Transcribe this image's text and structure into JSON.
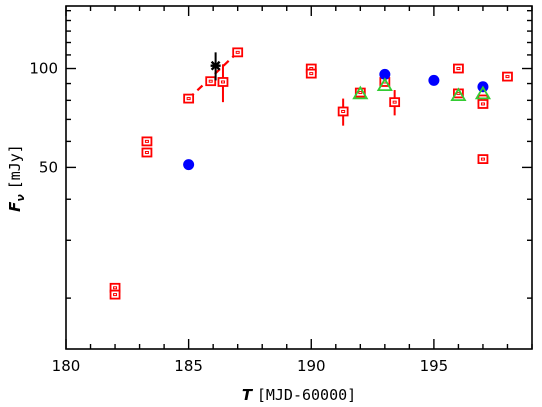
{
  "chart_data": {
    "type": "scatter",
    "title": "",
    "xlabel_symbol": "T",
    "xlabel_units": "[MJD-60000]",
    "ylabel_symbol": "F",
    "ylabel_subscript": "ν",
    "ylabel_units": "[mJy]",
    "y_scale": "log",
    "xlim": [
      180,
      199
    ],
    "ylim": [
      14,
      155
    ],
    "x_ticks": [
      180,
      185,
      190,
      195
    ],
    "y_ticks": [
      50,
      100
    ],
    "grid": false,
    "legend": "none",
    "series": [
      {
        "marker": "open-square-red",
        "color": "#ff0000",
        "points": [
          {
            "x": 182,
            "y": 21.5
          },
          {
            "x": 182,
            "y": 20.5
          },
          {
            "x": 183.3,
            "y": 60
          },
          {
            "x": 183.3,
            "y": 55.5
          },
          {
            "x": 185,
            "y": 81
          },
          {
            "x": 185.9,
            "y": 91.5
          },
          {
            "x": 186.4,
            "y": 91,
            "yerr": 12
          },
          {
            "x": 187,
            "y": 112
          },
          {
            "x": 190,
            "y": 100
          },
          {
            "x": 190,
            "y": 96.5
          },
          {
            "x": 191.3,
            "y": 74,
            "yerr": 7
          },
          {
            "x": 192,
            "y": 84.5
          },
          {
            "x": 193,
            "y": 91
          },
          {
            "x": 193.4,
            "y": 79,
            "yerr": 7
          },
          {
            "x": 196,
            "y": 100
          },
          {
            "x": 196,
            "y": 84
          },
          {
            "x": 197,
            "y": 80.5
          },
          {
            "x": 197,
            "y": 78
          },
          {
            "x": 197,
            "y": 53
          },
          {
            "x": 198,
            "y": 94.5
          }
        ]
      },
      {
        "marker": "filled-circle-blue",
        "color": "#0000ff",
        "points": [
          {
            "x": 185,
            "y": 51
          },
          {
            "x": 193,
            "y": 96
          },
          {
            "x": 195,
            "y": 92
          },
          {
            "x": 197,
            "y": 88
          }
        ]
      },
      {
        "marker": "open-triangle-green",
        "color": "#33cc33",
        "points": [
          {
            "x": 192,
            "y": 84
          },
          {
            "x": 193,
            "y": 89
          },
          {
            "x": 196,
            "y": 83
          },
          {
            "x": 197,
            "y": 84
          }
        ]
      },
      {
        "marker": "asterisk-black",
        "color": "#000000",
        "points": [
          {
            "x": 186.1,
            "y": 102,
            "yerr": 10
          }
        ]
      }
    ],
    "dashed_line": {
      "color": "#ff0000",
      "points": [
        {
          "x": 185,
          "y": 81
        },
        {
          "x": 187,
          "y": 112
        }
      ]
    }
  }
}
